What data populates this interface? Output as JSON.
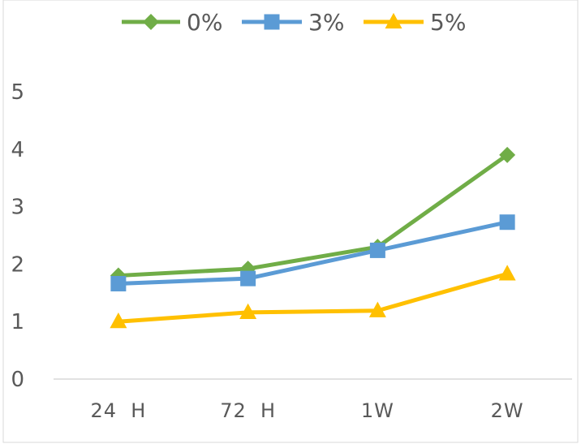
{
  "chart_data": {
    "type": "line",
    "categories": [
      "24 H",
      "72 H",
      "1W",
      "2W"
    ],
    "series": [
      {
        "name": "0%",
        "values": [
          1.8,
          1.92,
          2.3,
          3.9
        ],
        "color": "#70AD47",
        "marker": "diamond"
      },
      {
        "name": "3%",
        "values": [
          1.66,
          1.75,
          2.24,
          2.73
        ],
        "color": "#5B9BD5",
        "marker": "square"
      },
      {
        "name": "5%",
        "values": [
          1.0,
          1.16,
          1.19,
          1.83
        ],
        "color": "#FFC000",
        "marker": "triangle"
      }
    ],
    "yticks": [
      "0",
      "1",
      "2",
      "3",
      "4",
      "5"
    ],
    "ylim": [
      0,
      5
    ],
    "grid": false,
    "legend_position": "top"
  }
}
